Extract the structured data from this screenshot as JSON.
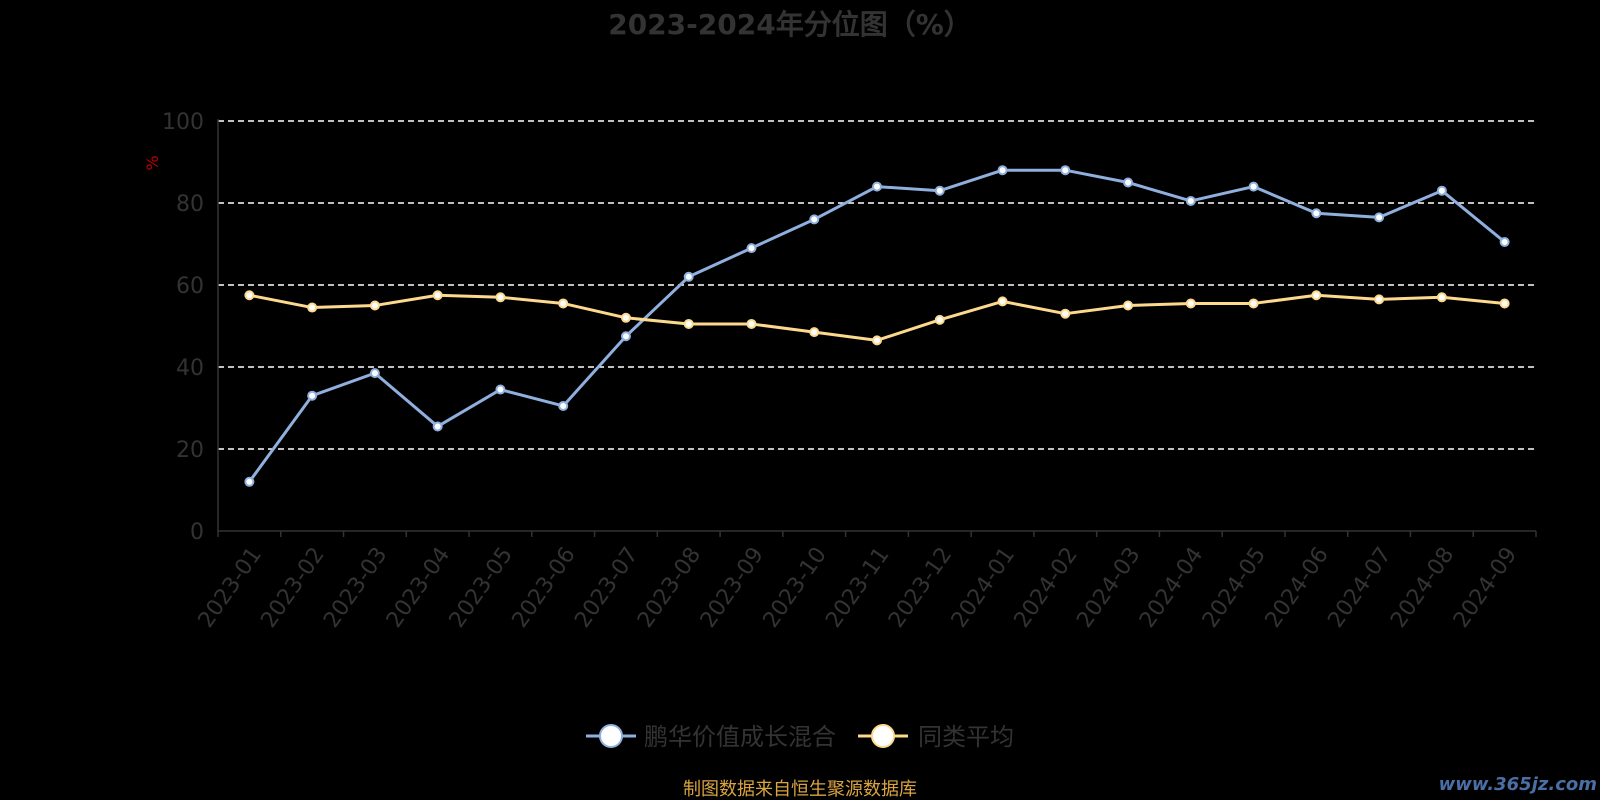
{
  "chart_data": {
    "type": "line",
    "title": "2023-2024年分位图（%）",
    "ylabel": "%",
    "ylim": [
      0,
      100
    ],
    "yticks": [
      "0",
      "20",
      "40",
      "60",
      "80",
      "100"
    ],
    "grid": true,
    "legend_position": "bottom",
    "categories": [
      "2023-01",
      "2023-02",
      "2023-03",
      "2023-04",
      "2023-05",
      "2023-06",
      "2023-07",
      "2023-08",
      "2023-09",
      "2023-10",
      "2023-11",
      "2023-12",
      "2024-01",
      "2024-02",
      "2024-03",
      "2024-04",
      "2024-05",
      "2024-06",
      "2024-07",
      "2024-08",
      "2024-09"
    ],
    "series": [
      {
        "name": "鹏华价值成长混合",
        "color": "#8fb0de",
        "values": [
          12,
          33,
          38.5,
          25.5,
          34.5,
          30.5,
          47.5,
          62,
          69,
          76,
          84,
          83,
          88,
          88,
          85,
          80.5,
          84,
          77.5,
          76.5,
          83,
          70.5
        ]
      },
      {
        "name": "同类平均",
        "color": "#fcd98c",
        "values": [
          57.5,
          54.5,
          55,
          57.5,
          57,
          55.5,
          52,
          50.5,
          50.5,
          48.5,
          46.5,
          51.5,
          56,
          53,
          55,
          55.5,
          55.5,
          57.5,
          56.5,
          57,
          55.5
        ]
      }
    ]
  },
  "source_note": "制图数据来自恒生聚源数据库",
  "watermark": "www.365jz.com"
}
